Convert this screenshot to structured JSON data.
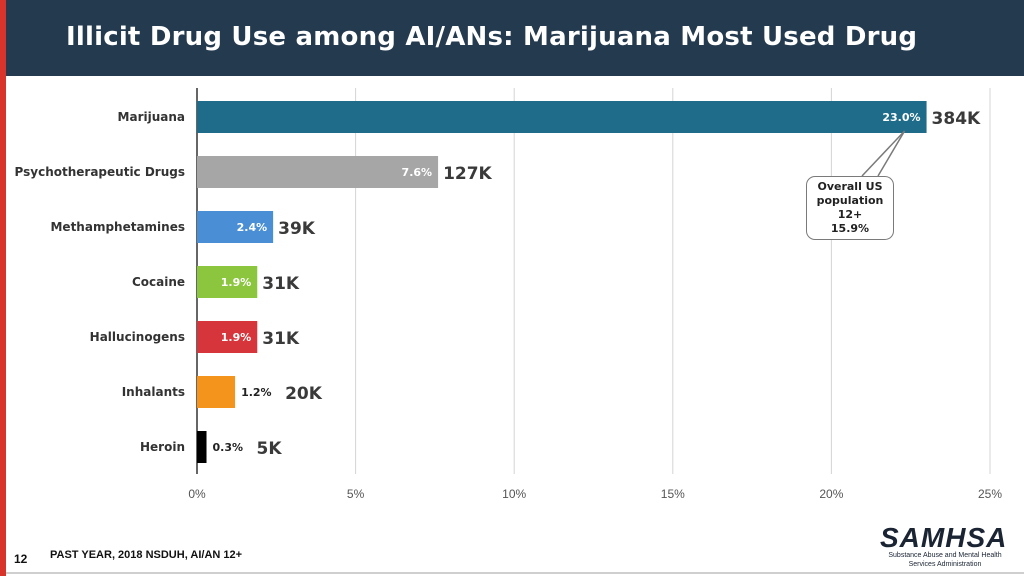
{
  "slide": {
    "title": "Illicit Drug Use among AI/ANs: Marijuana Most Used Drug",
    "page_number": "12",
    "footnote": "PAST YEAR, 2018 NSDUH, AI/AN 12+",
    "logo_text": "SAMHSA",
    "logo_subtext": "Substance Abuse and Mental Health Services Administration"
  },
  "callout": {
    "line1": "Overall US",
    "line2": "population",
    "line3": "12+",
    "line4": "15.9%",
    "points_to": "Marijuana"
  },
  "chart_data": {
    "type": "bar",
    "orientation": "horizontal",
    "title": "",
    "xlabel": "",
    "ylabel": "",
    "xlim": [
      0,
      25
    ],
    "xticks": [
      "0%",
      "5%",
      "10%",
      "15%",
      "20%",
      "25%"
    ],
    "grid": true,
    "categories": [
      "Marijuana",
      "Psychotherapeutic Drugs",
      "Methamphetamines",
      "Cocaine",
      "Hallucinogens",
      "Inhalants",
      "Heroin"
    ],
    "values": [
      23.0,
      7.6,
      2.4,
      1.9,
      1.9,
      1.2,
      0.3
    ],
    "percent_labels": [
      "23.0%",
      "7.6%",
      "2.4%",
      "1.9%",
      "1.9%",
      "1.2%",
      "0.3%"
    ],
    "count_labels": [
      "384K",
      "127K",
      "39K",
      "31K",
      "31K",
      "20K",
      "5K"
    ],
    "colors": [
      "#1f6b8a",
      "#a6a6a6",
      "#4a8fd6",
      "#8cc63f",
      "#d5353b",
      "#f5941d",
      "#000000"
    ]
  }
}
